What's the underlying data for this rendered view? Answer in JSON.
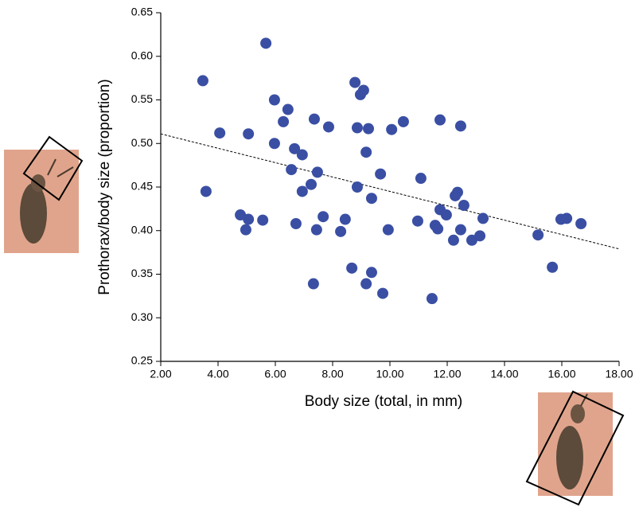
{
  "chart_data": {
    "type": "scatter",
    "x_label": "Body size (total, in mm)",
    "y_label": "Prothorax/body size (proportion)",
    "xlim": [
      2,
      18
    ],
    "ylim": [
      0.25,
      0.65
    ],
    "xticks": [
      {
        "value": 2,
        "label": "2.00"
      },
      {
        "value": 4,
        "label": "4.00"
      },
      {
        "value": 6,
        "label": "6.00"
      },
      {
        "value": 8,
        "label": "8.00"
      },
      {
        "value": 10,
        "label": "10.00"
      },
      {
        "value": 12,
        "label": "12.00"
      },
      {
        "value": 14,
        "label": "14.00"
      },
      {
        "value": 16,
        "label": "16.00"
      },
      {
        "value": 18,
        "label": "18.00"
      }
    ],
    "yticks": [
      {
        "value": 0.25,
        "label": "0.25"
      },
      {
        "value": 0.3,
        "label": "0.30"
      },
      {
        "value": 0.35,
        "label": "0.35"
      },
      {
        "value": 0.4,
        "label": "0.40"
      },
      {
        "value": 0.45,
        "label": "0.45"
      },
      {
        "value": 0.5,
        "label": "0.50"
      },
      {
        "value": 0.55,
        "label": "0.55"
      },
      {
        "value": 0.6,
        "label": "0.60"
      },
      {
        "value": 0.65,
        "label": "0.65"
      }
    ],
    "color": "#3a4fa3",
    "x": [
      3.47,
      3.58,
      4.06,
      4.78,
      4.97,
      5.06,
      5.06,
      5.56,
      5.67,
      5.97,
      5.97,
      6.28,
      6.44,
      6.56,
      6.67,
      6.72,
      6.94,
      6.94,
      7.25,
      7.36,
      7.33,
      7.47,
      7.44,
      7.67,
      7.86,
      8.28,
      8.44,
      8.67,
      8.78,
      8.86,
      8.86,
      8.97,
      9.08,
      9.17,
      9.17,
      9.25,
      9.36,
      9.36,
      9.67,
      9.75,
      9.94,
      10.06,
      10.47,
      10.97,
      11.08,
      11.47,
      11.58,
      11.67,
      11.75,
      11.75,
      11.97,
      12.22,
      12.28,
      12.36,
      12.47,
      12.47,
      12.58,
      12.86,
      13.14,
      13.25,
      15.17,
      15.67,
      15.97,
      16.17,
      16.67
    ],
    "values": [
      0.572,
      0.445,
      0.512,
      0.418,
      0.401,
      0.413,
      0.511,
      0.412,
      0.615,
      0.55,
      0.5,
      0.525,
      0.539,
      0.47,
      0.494,
      0.408,
      0.487,
      0.445,
      0.453,
      0.528,
      0.339,
      0.467,
      0.401,
      0.416,
      0.519,
      0.399,
      0.413,
      0.357,
      0.57,
      0.518,
      0.45,
      0.556,
      0.561,
      0.339,
      0.49,
      0.517,
      0.437,
      0.352,
      0.465,
      0.328,
      0.401,
      0.516,
      0.525,
      0.411,
      0.46,
      0.322,
      0.406,
      0.402,
      0.527,
      0.424,
      0.418,
      0.389,
      0.44,
      0.444,
      0.52,
      0.401,
      0.429,
      0.389,
      0.394,
      0.414,
      0.395,
      0.358,
      0.413,
      0.414,
      0.408
    ],
    "trendline": {
      "x": [
        2,
        18
      ],
      "y": [
        0.511,
        0.379
      ]
    }
  }
}
